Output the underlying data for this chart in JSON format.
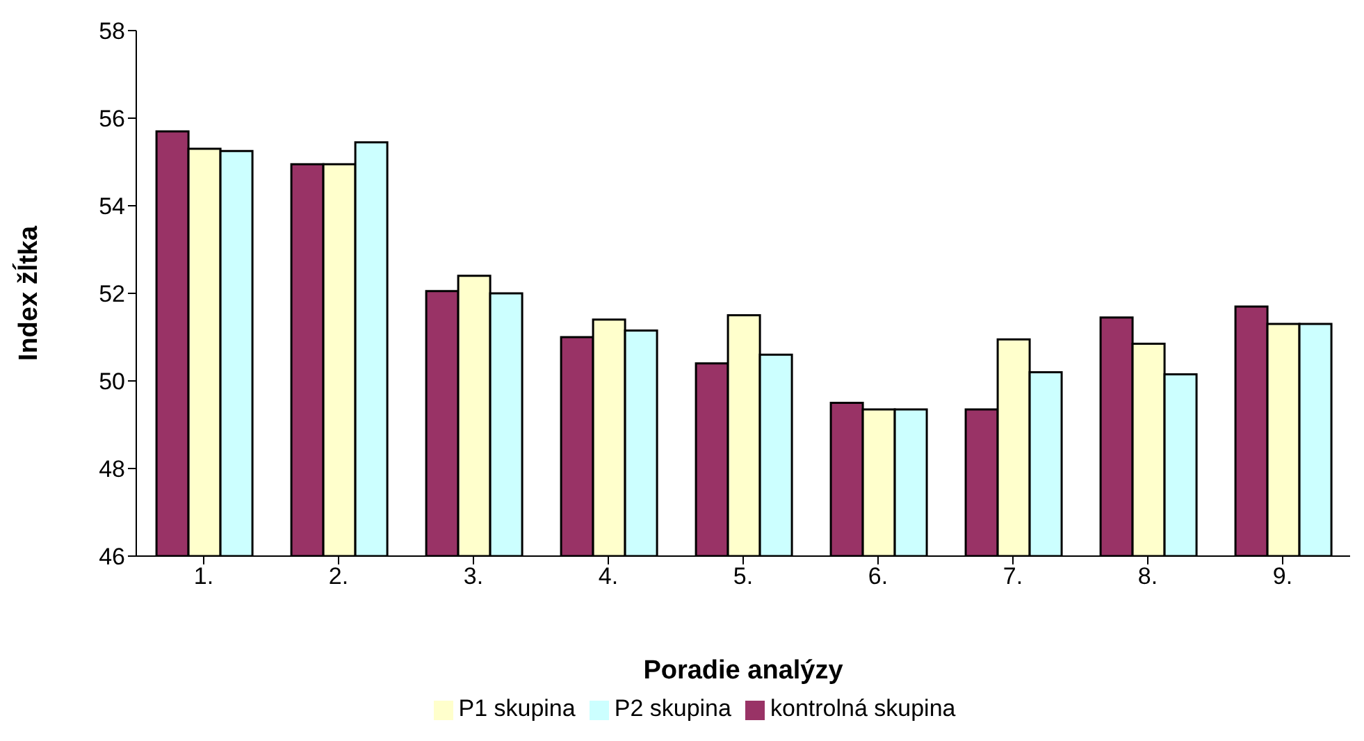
{
  "chart_data": {
    "type": "bar",
    "xlabel": "Poradie analýzy",
    "ylabel": "Index žĺtka",
    "categories": [
      "1.",
      "2.",
      "3.",
      "4.",
      "5.",
      "6.",
      "7.",
      "8.",
      "9."
    ],
    "series": [
      {
        "name": "kontrolná skupina",
        "color": "#993366",
        "values": [
          55.7,
          54.95,
          52.05,
          51.0,
          50.4,
          49.5,
          49.35,
          51.45,
          51.7
        ]
      },
      {
        "name": "P1 skupina",
        "color": "#ffffcc",
        "values": [
          55.3,
          54.95,
          52.4,
          51.4,
          51.5,
          49.35,
          50.95,
          50.85,
          51.3
        ]
      },
      {
        "name": "P2 skupina",
        "color": "#ccffff",
        "values": [
          55.25,
          55.45,
          52.0,
          51.15,
          50.6,
          49.35,
          50.2,
          50.15,
          51.3
        ]
      }
    ],
    "ylim": [
      46,
      58
    ],
    "yticks": [
      46,
      48,
      50,
      52,
      54,
      56,
      58
    ],
    "grid": false,
    "legend": "bottom"
  }
}
